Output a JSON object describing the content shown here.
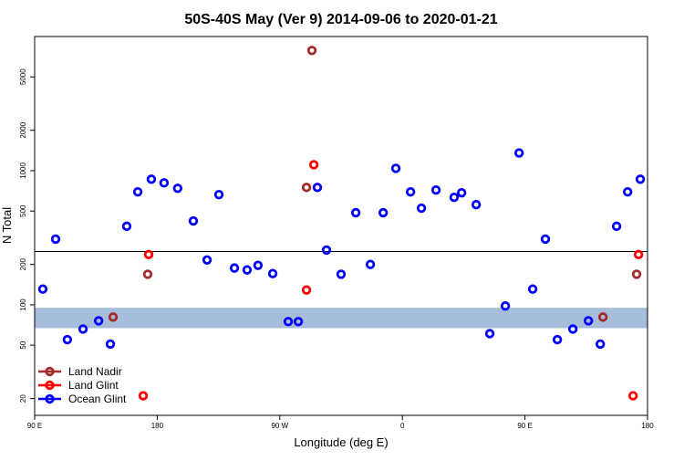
{
  "chart_data": {
    "type": "scatter",
    "title": "50S-40S May (Ver 9)   2014-09-06 to 2020-01-21",
    "x_label": "Longitude (deg E)",
    "y_label": "N Total",
    "xlim": [
      90,
      540
    ],
    "xticks": [
      {
        "value": 90,
        "label": "90 E"
      },
      180,
      {
        "value": 270,
        "label": "90 W"
      },
      {
        "value": 360,
        "label": "0"
      },
      {
        "value": 450,
        "label": "90 E"
      },
      {
        "value": 540,
        "label": "180"
      }
    ],
    "ylim": [
      15,
      10000
    ],
    "y_log": true,
    "yticks": [
      20,
      50,
      100,
      200,
      500,
      1000,
      2000,
      5000
    ],
    "reference_line": 250,
    "shaded_band": [
      67,
      95
    ],
    "legend": "bottom-left",
    "series": [
      {
        "name": "Land Nadir",
        "color": "#a52a2a",
        "x": [
          147.6,
          173,
          289.6,
          293.6,
          507.3,
          532
        ],
        "values": [
          81,
          169,
          750,
          7870,
          81,
          169
        ]
      },
      {
        "name": "Land Glint",
        "color": "#ff0000",
        "x": [
          169.7,
          173.7,
          289.6,
          295,
          529.4,
          533.4
        ],
        "values": [
          21,
          237,
          129,
          1107,
          21,
          237
        ]
      },
      {
        "name": "Ocean Glint",
        "color": "#0000ff",
        "x": [
          96,
          105.4,
          114,
          125.5,
          137,
          145.6,
          157.6,
          165.7,
          175.7,
          185,
          195,
          206.5,
          216.6,
          225.3,
          236.7,
          246,
          254,
          264.8,
          276.2,
          283.6,
          297.6,
          304.3,
          315,
          325.8,
          336.5,
          345.9,
          355.2,
          366,
          374,
          384.7,
          398,
          403.5,
          414.2,
          424.2,
          435.6,
          445.7,
          455.7,
          465,
          473.8,
          485.2,
          496.6,
          505.3,
          517.3,
          525.4,
          534.7
        ],
        "values": [
          131,
          309,
          55,
          66,
          76,
          51,
          385,
          695,
          863,
          811,
          739,
          422,
          216,
          663,
          188,
          182,
          197,
          171,
          75,
          75,
          750,
          256,
          169,
          486,
          200,
          486,
          1040,
          695,
          525,
          717,
          633,
          684,
          558,
          61,
          98,
          1355,
          131,
          309,
          55,
          66,
          76,
          51,
          385,
          695,
          863
        ]
      }
    ]
  }
}
